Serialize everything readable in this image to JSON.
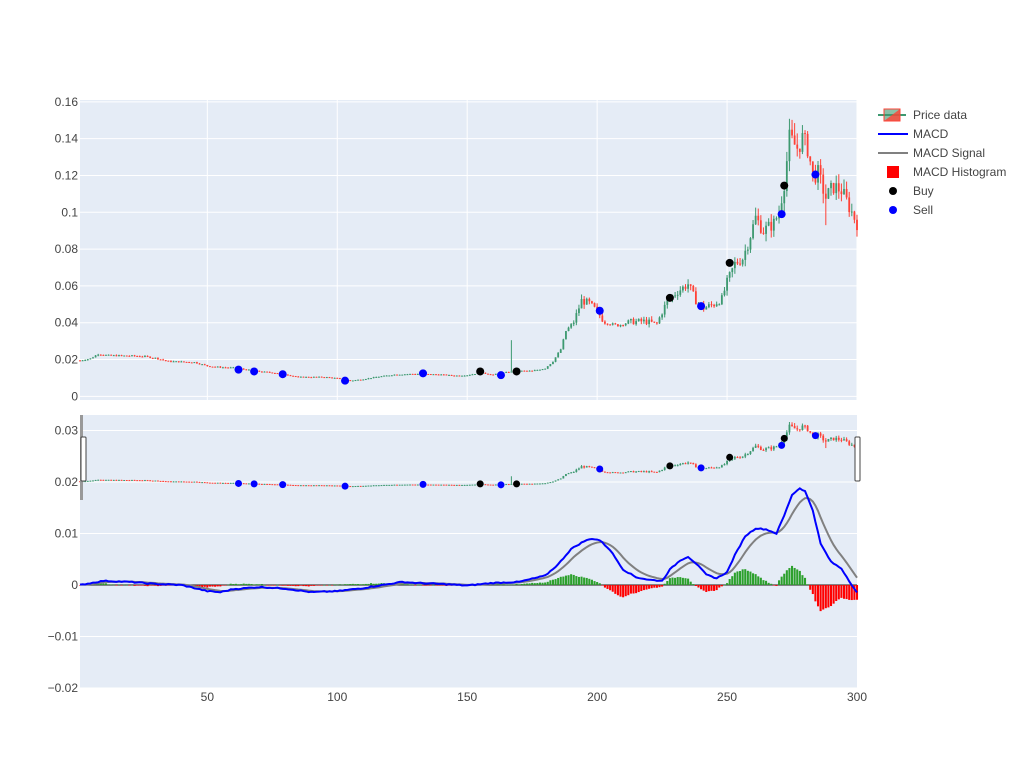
{
  "chart_data": {
    "type": "candlestick",
    "x_range": [
      1,
      300
    ],
    "x_ticks": [
      50,
      100,
      150,
      200,
      250,
      300
    ],
    "x_tick_labels": [
      "50",
      "100",
      "150",
      "200",
      "250",
      "300"
    ],
    "price_panel": {
      "ylim": [
        -0.002,
        0.161
      ],
      "y_ticks": [
        0,
        0.02,
        0.04,
        0.06,
        0.08,
        0.1,
        0.12,
        0.14,
        0.16
      ],
      "y_tick_labels": [
        "0",
        "0.02",
        "0.04",
        "0.06",
        "0.08",
        "0.1",
        "0.12",
        "0.14",
        "0.16"
      ],
      "grid": true
    },
    "macd_panel": {
      "ylim": [
        -0.02,
        0.033
      ],
      "y_ticks": [
        -0.02,
        -0.01,
        0,
        0.01,
        0.02,
        0.03
      ],
      "y_tick_labels": [
        "−0.02",
        "−0.01",
        "0",
        "0.01",
        "0.02",
        "0.03"
      ],
      "grid": true
    },
    "range_slider": true,
    "price_anchors": [
      [
        1,
        0.0195
      ],
      [
        5,
        0.0205
      ],
      [
        8,
        0.023
      ],
      [
        12,
        0.0222
      ],
      [
        20,
        0.022
      ],
      [
        25,
        0.0218
      ],
      [
        30,
        0.0208
      ],
      [
        35,
        0.019
      ],
      [
        45,
        0.0185
      ],
      [
        50,
        0.0165
      ],
      [
        55,
        0.0158
      ],
      [
        60,
        0.0155
      ],
      [
        65,
        0.0145
      ],
      [
        70,
        0.0135
      ],
      [
        78,
        0.0125
      ],
      [
        85,
        0.0105
      ],
      [
        95,
        0.0105
      ],
      [
        100,
        0.0098
      ],
      [
        105,
        0.0085
      ],
      [
        110,
        0.0093
      ],
      [
        115,
        0.0105
      ],
      [
        122,
        0.0118
      ],
      [
        130,
        0.0122
      ],
      [
        140,
        0.0118
      ],
      [
        145,
        0.0112
      ],
      [
        150,
        0.0115
      ],
      [
        155,
        0.0128
      ],
      [
        160,
        0.0118
      ],
      [
        165,
        0.013
      ],
      [
        170,
        0.0138
      ],
      [
        175,
        0.0138
      ],
      [
        180,
        0.0152
      ],
      [
        183,
        0.019
      ],
      [
        186,
        0.0255
      ],
      [
        188,
        0.0355
      ],
      [
        191,
        0.0405
      ],
      [
        194,
        0.052
      ],
      [
        197,
        0.0505
      ],
      [
        200,
        0.046
      ],
      [
        203,
        0.04
      ],
      [
        208,
        0.0385
      ],
      [
        213,
        0.0405
      ],
      [
        218,
        0.0408
      ],
      [
        223,
        0.0395
      ],
      [
        227,
        0.052
      ],
      [
        231,
        0.057
      ],
      [
        235,
        0.061
      ],
      [
        238,
        0.052
      ],
      [
        241,
        0.048
      ],
      [
        245,
        0.05
      ],
      [
        248,
        0.053
      ],
      [
        250,
        0.062
      ],
      [
        253,
        0.072
      ],
      [
        256,
        0.075
      ],
      [
        258,
        0.083
      ],
      [
        261,
        0.097
      ],
      [
        264,
        0.09
      ],
      [
        266,
        0.092
      ],
      [
        268,
        0.094
      ],
      [
        270,
        0.1
      ],
      [
        272,
        0.116
      ],
      [
        274,
        0.14
      ],
      [
        277,
        0.135
      ],
      [
        279,
        0.14
      ],
      [
        281,
        0.135
      ],
      [
        283,
        0.12
      ],
      [
        285,
        0.121
      ],
      [
        288,
        0.108
      ],
      [
        291,
        0.114
      ],
      [
        294,
        0.112
      ],
      [
        297,
        0.103
      ],
      [
        300,
        0.094
      ]
    ],
    "buy_points": [
      [
        155,
        0.0135
      ],
      [
        169,
        0.0135
      ],
      [
        228,
        0.0535
      ],
      [
        251,
        0.0725
      ],
      [
        272,
        0.1145
      ]
    ],
    "sell_points": [
      [
        62,
        0.0145
      ],
      [
        68,
        0.0135
      ],
      [
        79,
        0.012
      ],
      [
        103,
        0.0085
      ],
      [
        133,
        0.0125
      ],
      [
        163,
        0.0115
      ],
      [
        201,
        0.0465
      ],
      [
        240,
        0.049
      ],
      [
        271,
        0.099
      ],
      [
        284,
        0.1205
      ]
    ],
    "macd_anchors": [
      [
        1,
        0
      ],
      [
        10,
        0.0008
      ],
      [
        20,
        0.0006
      ],
      [
        30,
        0.0002
      ],
      [
        40,
        0
      ],
      [
        50,
        -0.0012
      ],
      [
        55,
        -0.0014
      ],
      [
        60,
        -0.0008
      ],
      [
        70,
        -0.0004
      ],
      [
        80,
        -0.0007
      ],
      [
        90,
        -0.0014
      ],
      [
        100,
        -0.0012
      ],
      [
        110,
        -0.0006
      ],
      [
        120,
        0.0002
      ],
      [
        125,
        0.0006
      ],
      [
        130,
        0.0004
      ],
      [
        140,
        0.0002
      ],
      [
        150,
        -0.0001
      ],
      [
        160,
        0.0004
      ],
      [
        170,
        0.0006
      ],
      [
        180,
        0.0018
      ],
      [
        185,
        0.004
      ],
      [
        190,
        0.007
      ],
      [
        195,
        0.0085
      ],
      [
        198,
        0.009
      ],
      [
        201,
        0.0087
      ],
      [
        205,
        0.0068
      ],
      [
        210,
        0.003
      ],
      [
        215,
        0.0015
      ],
      [
        220,
        0.001
      ],
      [
        225,
        0.0008
      ],
      [
        228,
        0.003
      ],
      [
        232,
        0.0048
      ],
      [
        235,
        0.0055
      ],
      [
        238,
        0.0042
      ],
      [
        242,
        0.002
      ],
      [
        246,
        0.0013
      ],
      [
        250,
        0.0025
      ],
      [
        253,
        0.0058
      ],
      [
        257,
        0.0095
      ],
      [
        261,
        0.011
      ],
      [
        265,
        0.0108
      ],
      [
        269,
        0.01
      ],
      [
        272,
        0.0135
      ],
      [
        275,
        0.0175
      ],
      [
        278,
        0.0188
      ],
      [
        280,
        0.0182
      ],
      [
        283,
        0.0145
      ],
      [
        286,
        0.008
      ],
      [
        290,
        0.0045
      ],
      [
        294,
        0.0032
      ],
      [
        297,
        0.0008
      ],
      [
        300,
        -0.0015
      ]
    ],
    "legend": {
      "position": "top-right",
      "entries": [
        {
          "name": "Price data",
          "type": "candle",
          "color_up": "#3d9970",
          "color_down": "#ff4136"
        },
        {
          "name": "MACD",
          "type": "line",
          "color": "#0000ff"
        },
        {
          "name": "MACD Signal",
          "type": "line",
          "color": "#808080"
        },
        {
          "name": "MACD Histogram",
          "type": "square",
          "color": "#ff0000"
        },
        {
          "name": "Buy",
          "type": "dot",
          "color": "#000000"
        },
        {
          "name": "Sell",
          "type": "dot",
          "color": "#0000ff"
        }
      ]
    },
    "colors": {
      "increasing": "#3d9970",
      "decreasing": "#ff4136",
      "macd": "#0000ff",
      "signal": "#808080",
      "hist_pos": "#2ca02c",
      "hist_neg": "#ff0000",
      "buy": "#000000",
      "sell": "#0000ff",
      "plot_bg": "#e5ecf6"
    }
  }
}
